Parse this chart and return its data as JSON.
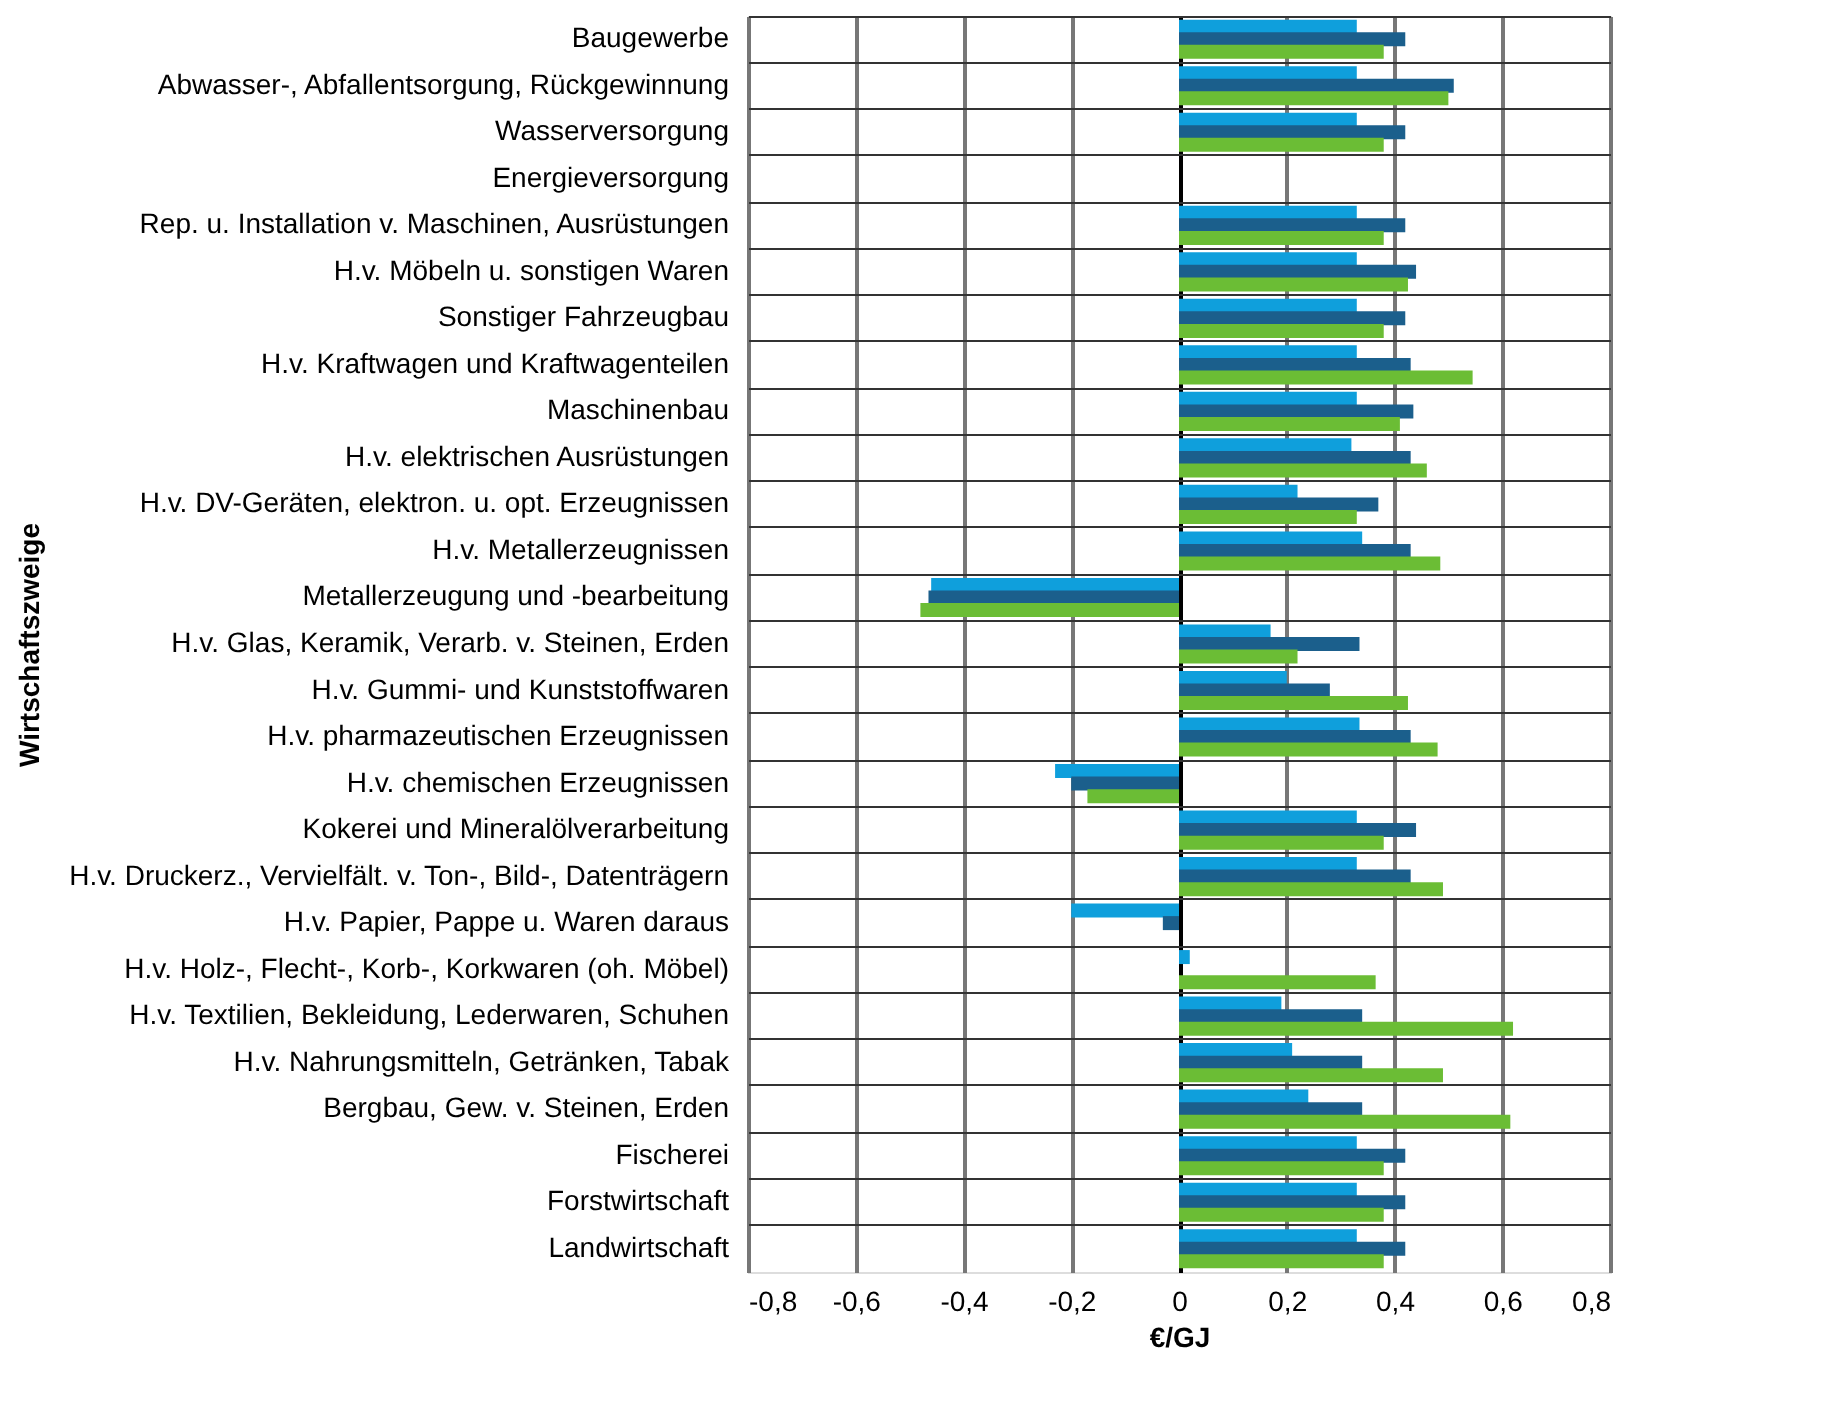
{
  "chart_data": {
    "type": "bar",
    "orientation": "horizontal",
    "xlabel": "€/GJ",
    "ylabel": "Wirtschaftszweige",
    "categories": [
      "Baugewerbe",
      "Abwasser-, Abfallentsorgung, Rückgewinnung",
      "Wasserversorgung",
      "Energieversorgung",
      "Rep. u. Installation v. Maschinen, Ausrüstungen",
      "H.v. Möbeln u. sonstigen Waren",
      "Sonstiger Fahrzeugbau",
      "H.v. Kraftwagen und Kraftwagenteilen",
      "Maschinenbau",
      "H.v. elektrischen Ausrüstungen",
      "H.v. DV-Geräten, elektron. u. opt. Erzeugnissen",
      "H.v. Metallerzeugnissen",
      "Metallerzeugung und -bearbeitung",
      "H.v. Glas, Keramik, Verarb. v. Steinen, Erden",
      "H.v. Gummi- und Kunststoffwaren",
      "H.v. pharmazeutischen Erzeugnissen",
      "H.v. chemischen Erzeugnissen",
      "Kokerei und Mineralölverarbeitung",
      "H.v. Druckerz., Vervielfält. v. Ton-, Bild-, Datenträgern",
      "H.v. Papier, Pappe u. Waren daraus",
      "H.v. Holz-, Flecht-, Korb-, Korkwaren (oh. Möbel)",
      "H.v. Textilien, Bekleidung, Lederwaren, Schuhen",
      "H.v. Nahrungsmitteln, Getränken, Tabak",
      "Bergbau, Gew. v. Steinen, Erden",
      "Fischerei",
      "Forstwirtschaft",
      "Landwirtschaft"
    ],
    "series": [
      {
        "color": "#0f9fdc",
        "values": [
          0.33,
          0.33,
          0.33,
          null,
          0.33,
          0.33,
          0.33,
          0.33,
          0.33,
          0.32,
          0.22,
          0.34,
          -0.46,
          0.17,
          0.2,
          0.335,
          -0.23,
          0.33,
          0.33,
          -0.2,
          0.02,
          0.19,
          0.21,
          0.24,
          0.33,
          0.33,
          0.33
        ]
      },
      {
        "color": "#1b5f8c",
        "values": [
          0.42,
          0.51,
          0.42,
          null,
          0.42,
          0.44,
          0.42,
          0.43,
          0.435,
          0.43,
          0.37,
          0.43,
          -0.465,
          0.335,
          0.28,
          0.43,
          -0.2,
          0.44,
          0.43,
          -0.03,
          null,
          0.34,
          0.34,
          0.34,
          0.42,
          0.42,
          0.42
        ]
      },
      {
        "color": "#6bbd35",
        "values": [
          0.38,
          0.5,
          0.38,
          null,
          0.38,
          0.425,
          0.38,
          0.545,
          0.41,
          0.46,
          0.33,
          0.485,
          -0.48,
          0.22,
          0.425,
          0.48,
          -0.17,
          0.38,
          0.49,
          null,
          0.365,
          0.62,
          0.49,
          0.615,
          0.38,
          0.38,
          0.38
        ]
      }
    ],
    "xlim": [
      -0.8,
      0.8
    ],
    "xticks": [
      {
        "value": -0.8,
        "label": "-0,8"
      },
      {
        "value": -0.6,
        "label": "-0,6"
      },
      {
        "value": -0.4,
        "label": "-0,4"
      },
      {
        "value": -0.2,
        "label": "-0,2"
      },
      0,
      {
        "value": 0.2,
        "label": "0,2"
      },
      {
        "value": 0.4,
        "label": "0,4"
      },
      {
        "value": 0.6,
        "label": "0,6"
      },
      {
        "value": 0.8,
        "label": "0,8"
      }
    ],
    "grid": true
  }
}
